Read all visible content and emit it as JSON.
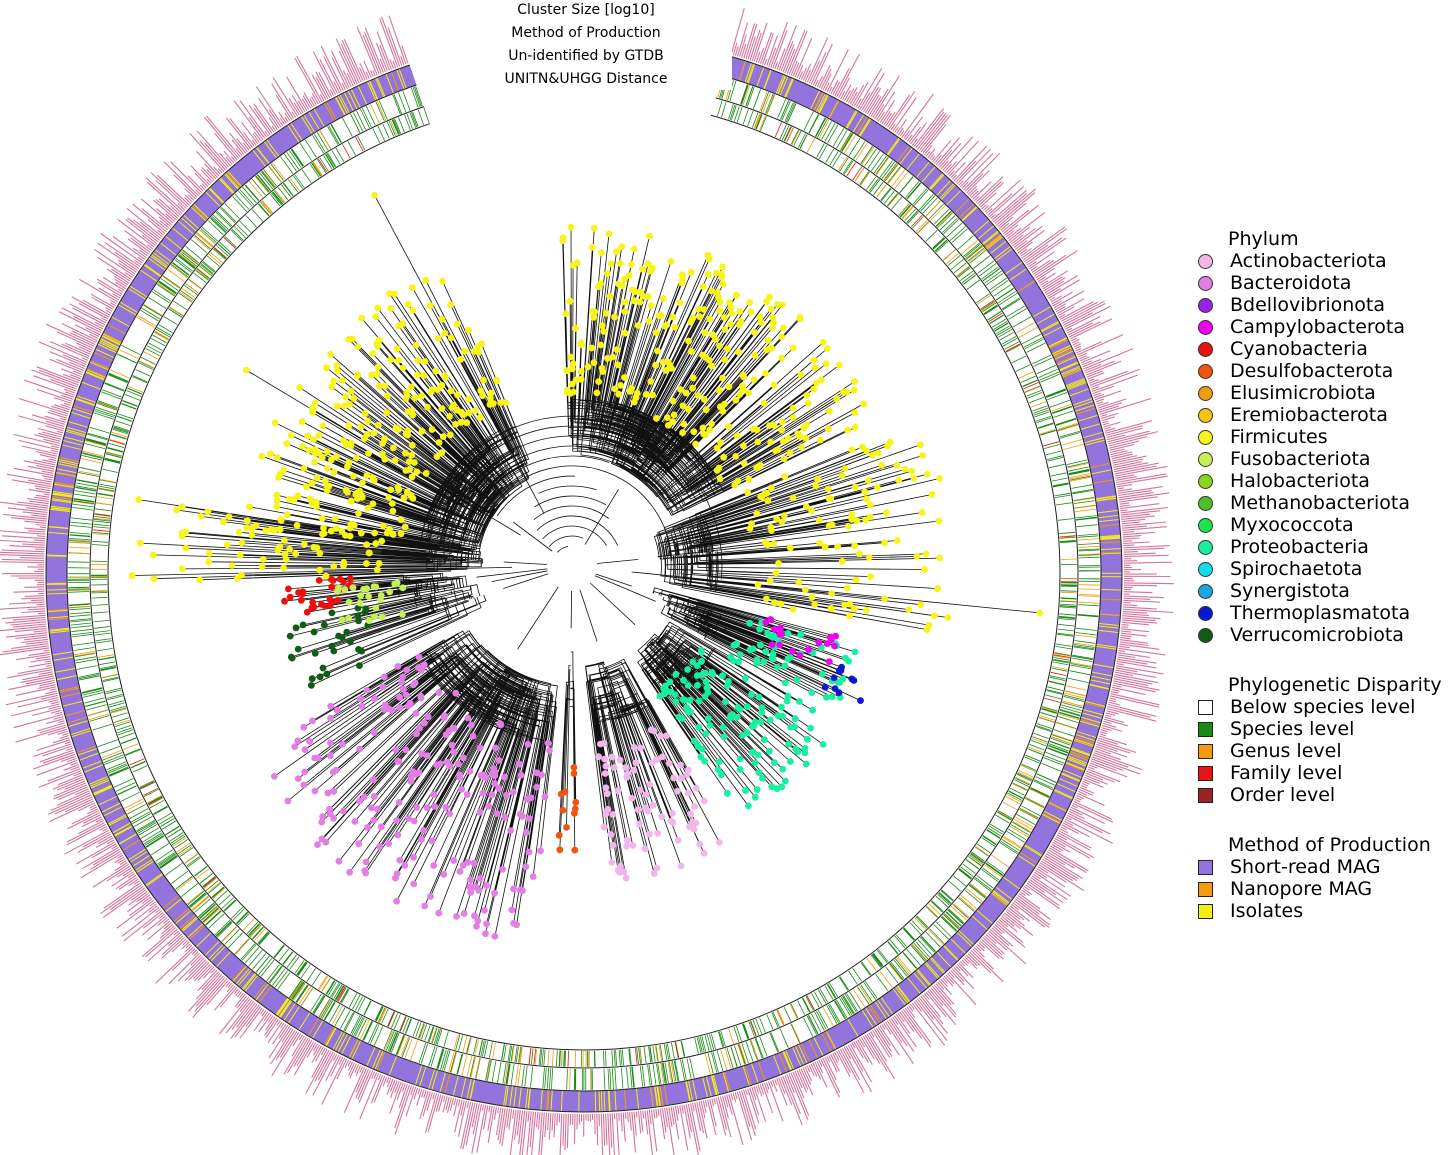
{
  "ring_labels": {
    "cluster_size": "Cluster Size [log10]",
    "method": "Method of Production",
    "unidentified": "Un-identified by GTDB",
    "distance": "UNITN&UHGG Distance"
  },
  "legend": {
    "phylum": {
      "title": "Phylum",
      "items": [
        {
          "label": "Actinobacteriota",
          "color": "#f2b6ea"
        },
        {
          "label": "Bacteroidota",
          "color": "#e27ee6"
        },
        {
          "label": "Bdellovibrionota",
          "color": "#9b22e0"
        },
        {
          "label": "Campylobacterota",
          "color": "#ef00ef"
        },
        {
          "label": "Cyanobacteria",
          "color": "#e8110e"
        },
        {
          "label": "Desulfobacterota",
          "color": "#f0540e"
        },
        {
          "label": "Elusimicrobiota",
          "color": "#f29d10"
        },
        {
          "label": "Eremiobacterota",
          "color": "#f5c511"
        },
        {
          "label": "Firmicutes",
          "color": "#f7f419"
        },
        {
          "label": "Fusobacteriota",
          "color": "#c6f05a"
        },
        {
          "label": "Halobacteriota",
          "color": "#84d91e"
        },
        {
          "label": "Methanobacteriota",
          "color": "#4fbf2b"
        },
        {
          "label": "Myxococcota",
          "color": "#1fe34a"
        },
        {
          "label": "Proteobacteria",
          "color": "#18f0a0"
        },
        {
          "label": "Spirochaetota",
          "color": "#12dcef"
        },
        {
          "label": "Synergistota",
          "color": "#1aa6e5"
        },
        {
          "label": "Thermoplasmatota",
          "color": "#0a18d6"
        },
        {
          "label": "Verrucomicrobiota",
          "color": "#115c14"
        }
      ]
    },
    "disparity": {
      "title": "Phylogenetic Disparity",
      "items": [
        {
          "label": "Below species level",
          "color": "#ffffff"
        },
        {
          "label": "Species level",
          "color": "#1a8a16"
        },
        {
          "label": "Genus level",
          "color": "#f59a0f"
        },
        {
          "label": "Family level",
          "color": "#ea1410"
        },
        {
          "label": "Order level",
          "color": "#9a2424"
        }
      ]
    },
    "production": {
      "title": "Method of Production",
      "items": [
        {
          "label": "Short-read MAG",
          "color": "#9373dc"
        },
        {
          "label": "Nanopore MAG",
          "color": "#f59a0f"
        },
        {
          "label": "Isolates",
          "color": "#f5ef10"
        }
      ]
    }
  },
  "colors": {
    "cluster_bar": "#d4739a",
    "branch": "#111111",
    "ring_outline": "#222222"
  }
}
